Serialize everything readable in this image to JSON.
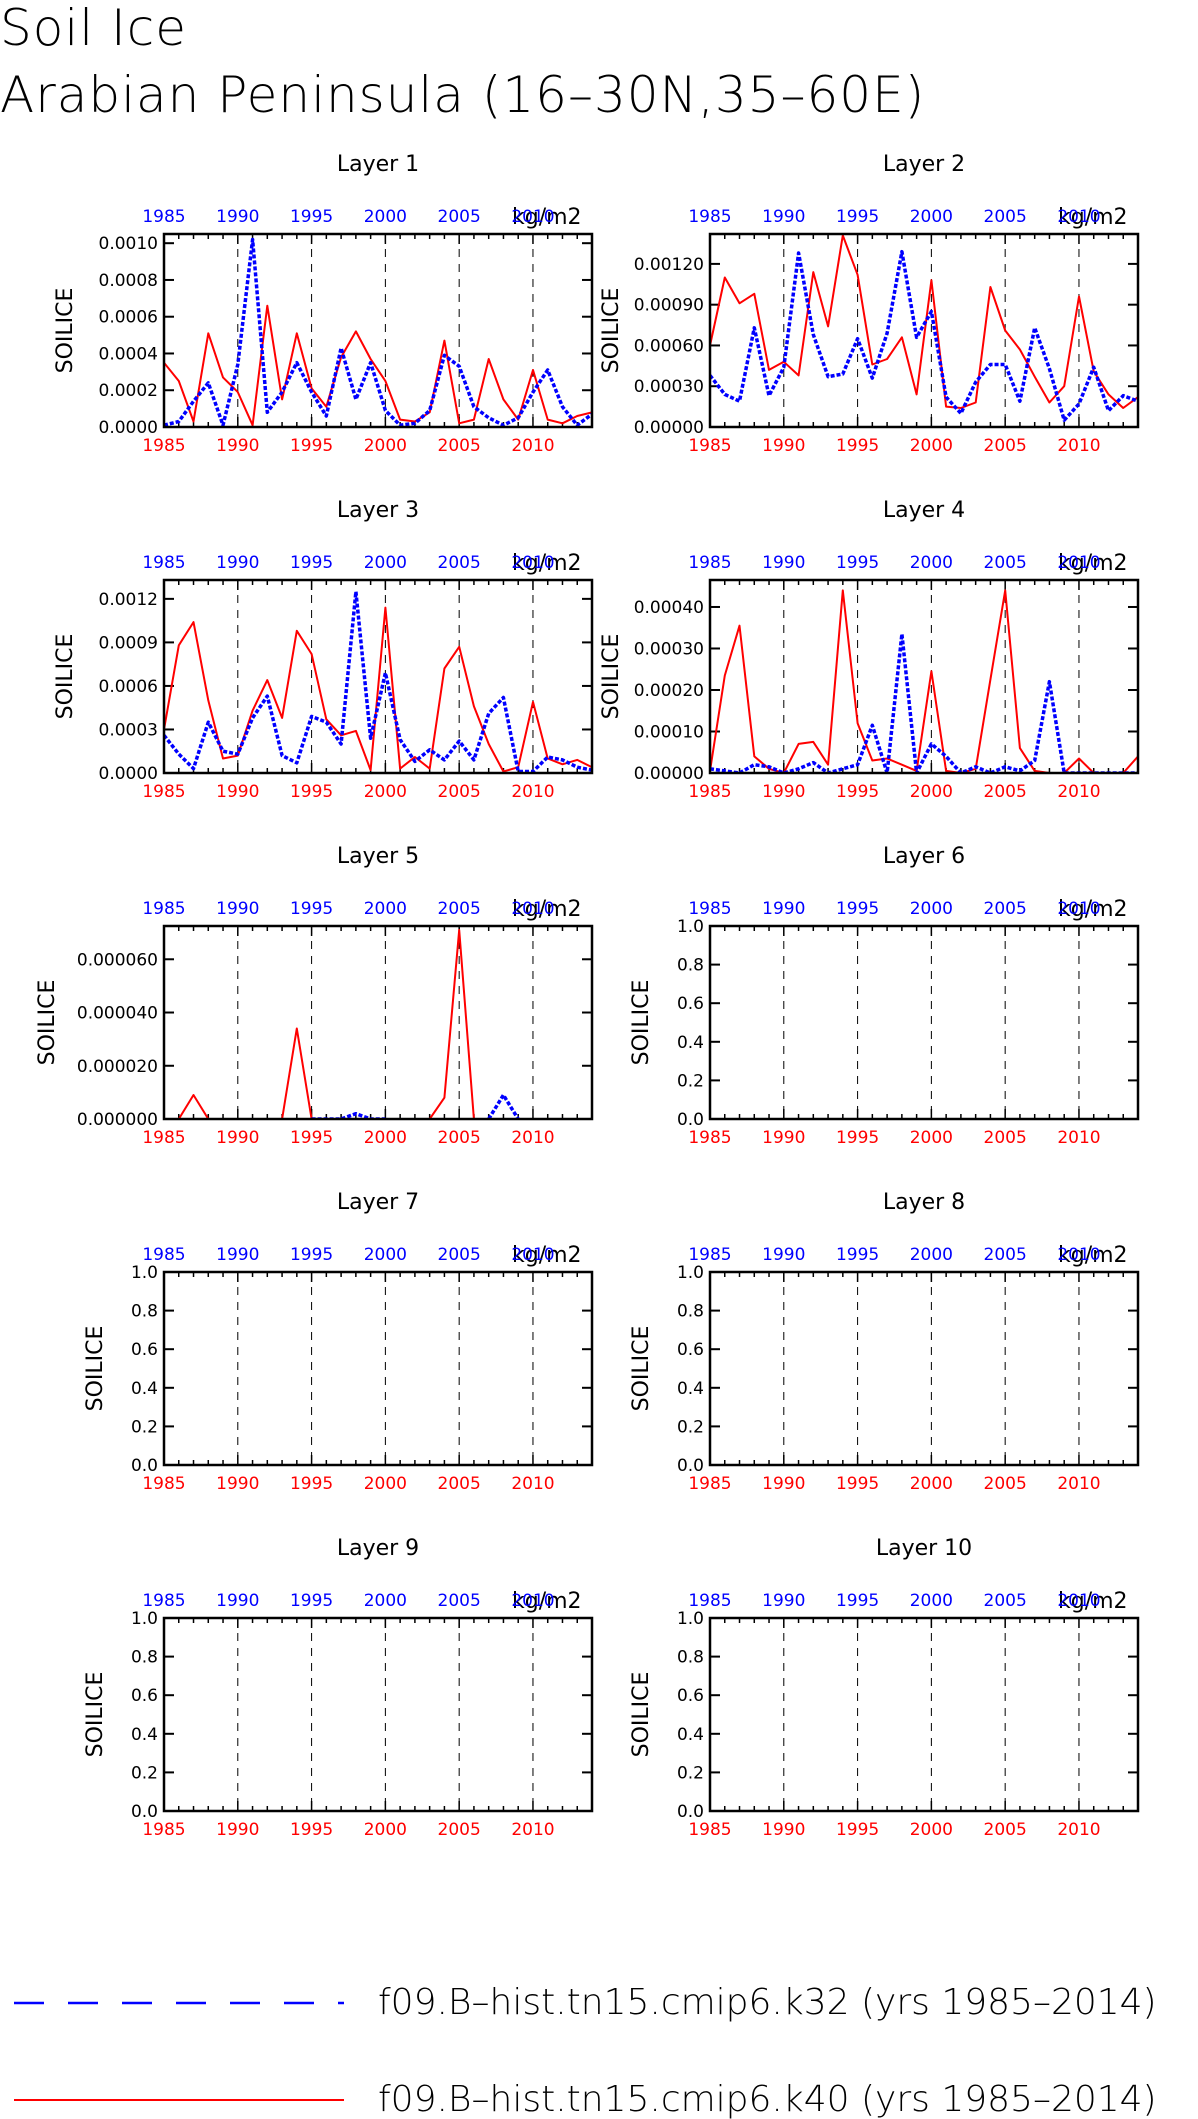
{
  "title": [
    "Soil Ice",
    "Arabian Peninsula (16–30N,35–60E)"
  ],
  "colors": {
    "k32": "#0000ff",
    "k40": "#ff0000",
    "axis": "#000000"
  },
  "legend": [
    {
      "series": "k32",
      "label": "f09.B–hist.tn15.cmip6.k32 (yrs 1985–2014)",
      "style": "dashed",
      "color": "#0000ff"
    },
    {
      "series": "k40",
      "label": "f09.B–hist.tn15.cmip6.k40 (yrs 1985–2014)",
      "style": "solid",
      "color": "#ff0000"
    }
  ],
  "chart_data": [
    {
      "type": "line",
      "title": "Layer 1",
      "ylabel": "SOILICE",
      "units": "kg/m2",
      "xlim": [
        1985,
        2014
      ],
      "ylim": [
        0,
        0.00105
      ],
      "yticks": [
        "0.0000",
        "0.0002",
        "0.0004",
        "0.0006",
        "0.0008",
        "0.0010"
      ],
      "ytick_values": [
        0,
        0.0002,
        0.0004,
        0.0006,
        0.0008,
        0.001
      ],
      "xticks_bottom": [
        "1985",
        "1990",
        "1995",
        "2000",
        "2005",
        "2010"
      ],
      "xticks_top": [
        "1985",
        "1990",
        "1995",
        "2000",
        "2005",
        "2010"
      ],
      "x": [
        1985,
        1986,
        1987,
        1988,
        1989,
        1990,
        1991,
        1992,
        1993,
        1994,
        1995,
        1996,
        1997,
        1998,
        1999,
        2000,
        2001,
        2002,
        2003,
        2004,
        2005,
        2006,
        2007,
        2008,
        2009,
        2010,
        2011,
        2012,
        2013,
        2014
      ],
      "series": [
        {
          "name": "k40",
          "values": [
            0.00035,
            0.00025,
            3e-05,
            0.00051,
            0.00027,
            0.00019,
            1e-05,
            0.00066,
            0.00015,
            0.00051,
            0.00021,
            0.00011,
            0.00038,
            0.00052,
            0.00037,
            0.00025,
            4e-05,
            3e-05,
            8e-05,
            0.00047,
            2e-05,
            4e-05,
            0.00037,
            0.00015,
            4e-05,
            0.00031,
            4e-05,
            2e-05,
            6e-05,
            8e-05
          ]
        },
        {
          "name": "k32",
          "values": [
            1e-05,
            3e-05,
            0.00014,
            0.00024,
            1e-05,
            0.00034,
            0.00102,
            8e-05,
            0.00019,
            0.00035,
            0.00019,
            6e-05,
            0.00043,
            0.00015,
            0.00035,
            9e-05,
            1e-05,
            2e-05,
            9e-05,
            0.00039,
            0.00033,
            0.00011,
            5e-05,
            1e-05,
            5e-05,
            0.00019,
            0.00031,
            0.00011,
            1e-05,
            7e-05
          ]
        }
      ]
    },
    {
      "type": "line",
      "title": "Layer 2",
      "ylabel": "SOILICE",
      "units": "kg/m2",
      "xlim": [
        1985,
        2014
      ],
      "ylim": [
        0,
        0.00142
      ],
      "yticks": [
        "0.00000",
        "0.00030",
        "0.00060",
        "0.00090",
        "0.00120"
      ],
      "ytick_values": [
        0,
        0.0003,
        0.0006,
        0.0009,
        0.0012
      ],
      "xticks_bottom": [
        "1985",
        "1990",
        "1995",
        "2000",
        "2005",
        "2010"
      ],
      "xticks_top": [
        "1985",
        "1990",
        "1995",
        "2000",
        "2005",
        "2010"
      ],
      "x": [
        1985,
        1986,
        1987,
        1988,
        1989,
        1990,
        1991,
        1992,
        1993,
        1994,
        1995,
        1996,
        1997,
        1998,
        1999,
        2000,
        2001,
        2002,
        2003,
        2004,
        2005,
        2006,
        2007,
        2008,
        2009,
        2010,
        2011,
        2012,
        2013,
        2014
      ],
      "series": [
        {
          "name": "k40",
          "values": [
            0.0006,
            0.0011,
            0.00091,
            0.00098,
            0.00042,
            0.00048,
            0.00038,
            0.00114,
            0.00074,
            0.00141,
            0.00112,
            0.00046,
            0.0005,
            0.00066,
            0.00024,
            0.00108,
            0.00015,
            0.00014,
            0.00018,
            0.00103,
            0.00071,
            0.00057,
            0.00037,
            0.00018,
            0.0003,
            0.00096,
            0.00041,
            0.00024,
            0.00014,
            0.00022
          ]
        },
        {
          "name": "k32",
          "values": [
            0.00038,
            0.00024,
            0.00019,
            0.00073,
            0.00023,
            0.00044,
            0.00128,
            0.00068,
            0.00037,
            0.00039,
            0.00065,
            0.00036,
            0.00069,
            0.00129,
            0.00066,
            0.00085,
            0.00022,
            0.0001,
            0.00033,
            0.00046,
            0.00046,
            0.00019,
            0.00073,
            0.00043,
            5e-05,
            0.00017,
            0.00044,
            0.00012,
            0.00023,
            0.00019
          ]
        }
      ]
    },
    {
      "type": "line",
      "title": "Layer 3",
      "ylabel": "SOILICE",
      "units": "kg/m2",
      "xlim": [
        1985,
        2014
      ],
      "ylim": [
        0,
        0.00133
      ],
      "yticks": [
        "0.0000",
        "0.0003",
        "0.0006",
        "0.0009",
        "0.0012"
      ],
      "ytick_values": [
        0,
        0.0003,
        0.0006,
        0.0009,
        0.0012
      ],
      "xticks_bottom": [
        "1985",
        "1990",
        "1995",
        "2000",
        "2005",
        "2010"
      ],
      "xticks_top": [
        "1985",
        "1990",
        "1995",
        "2000",
        "2005",
        "2010"
      ],
      "x": [
        1985,
        1986,
        1987,
        1988,
        1989,
        1990,
        1991,
        1992,
        1993,
        1994,
        1995,
        1996,
        1997,
        1998,
        1999,
        2000,
        2001,
        2002,
        2003,
        2004,
        2005,
        2006,
        2007,
        2008,
        2009,
        2010,
        2011,
        2012,
        2013,
        2014
      ],
      "series": [
        {
          "name": "k40",
          "values": [
            0.0003,
            0.00088,
            0.00104,
            0.0005,
            0.0001,
            0.00012,
            0.00043,
            0.00064,
            0.00038,
            0.00098,
            0.00082,
            0.00037,
            0.00026,
            0.00029,
            2e-05,
            0.00114,
            3e-05,
            0.00011,
            3e-05,
            0.00072,
            0.00087,
            0.00046,
            0.0002,
            1e-05,
            4e-05,
            0.00049,
            0.0001,
            6e-05,
            9e-05,
            4e-05
          ]
        },
        {
          "name": "k32",
          "values": [
            0.00026,
            0.00013,
            3e-05,
            0.00035,
            0.00015,
            0.00013,
            0.00038,
            0.00053,
            0.00012,
            7e-05,
            0.00039,
            0.00035,
            0.0002,
            0.00125,
            0.00024,
            0.00069,
            0.00023,
            8e-05,
            0.00016,
            9e-05,
            0.00022,
            9e-05,
            0.00041,
            0.00052,
            1e-05,
            1e-05,
            0.00011,
            9e-05,
            4e-05,
            2e-05
          ]
        }
      ]
    },
    {
      "type": "line",
      "title": "Layer 4",
      "ylabel": "SOILICE",
      "units": "kg/m2",
      "xlim": [
        1985,
        2014
      ],
      "ylim": [
        0,
        0.000465
      ],
      "yticks": [
        "0.00000",
        "0.00010",
        "0.00020",
        "0.00030",
        "0.00040"
      ],
      "ytick_values": [
        0,
        0.0001,
        0.0002,
        0.0003,
        0.0004
      ],
      "xticks_bottom": [
        "1985",
        "1990",
        "1995",
        "2000",
        "2005",
        "2010"
      ],
      "xticks_top": [
        "1985",
        "1990",
        "1995",
        "2000",
        "2005",
        "2010"
      ],
      "x": [
        1985,
        1986,
        1987,
        1988,
        1989,
        1990,
        1991,
        1992,
        1993,
        1994,
        1995,
        1996,
        1997,
        1998,
        1999,
        2000,
        2001,
        2002,
        2003,
        2004,
        2005,
        2006,
        2007,
        2008,
        2009,
        2010,
        2011,
        2012,
        2013,
        2014
      ],
      "series": [
        {
          "name": "k40",
          "values": [
            5e-06,
            0.000235,
            0.000355,
            4e-05,
            1e-05,
            0.0,
            7e-05,
            7.5e-05,
            2e-05,
            0.00044,
            0.00012,
            3e-05,
            3.5e-05,
            2e-05,
            5e-06,
            0.000245,
            5e-06,
            0.0,
            1e-05,
            0.000225,
            0.00044,
            6e-05,
            5e-06,
            0.0,
            0.0,
            3.5e-05,
            0.0,
            0.0,
            0.0,
            4e-05
          ]
        },
        {
          "name": "k32",
          "values": [
            1e-05,
            5e-06,
            0.0,
            2e-05,
            1.5e-05,
            0.0,
            1e-05,
            2.5e-05,
            0.0,
            1e-05,
            2e-05,
            0.000115,
            0.0,
            0.000335,
            0.0,
            7e-05,
            4e-05,
            0.0,
            1.5e-05,
            0.0,
            1.5e-05,
            5e-06,
            3e-05,
            0.00022,
            0.0,
            0.0,
            0.0,
            0.0,
            0.0,
            0.0
          ]
        }
      ]
    },
    {
      "type": "line",
      "title": "Layer 5",
      "ylabel": "SOILICE",
      "units": "kg/m2",
      "xlim": [
        1985,
        2014
      ],
      "ylim": [
        0,
        7.25e-05
      ],
      "yticks": [
        "0.000000",
        "0.000020",
        "0.000040",
        "0.000060"
      ],
      "ytick_values": [
        0,
        2e-05,
        4e-05,
        6e-05
      ],
      "xticks_bottom": [
        "1985",
        "1990",
        "1995",
        "2000",
        "2005",
        "2010"
      ],
      "xticks_top": [
        "1985",
        "1990",
        "1995",
        "2000",
        "2005",
        "2010"
      ],
      "x": [
        1985,
        1986,
        1987,
        1988,
        1989,
        1990,
        1991,
        1992,
        1993,
        1994,
        1995,
        1996,
        1997,
        1998,
        1999,
        2000,
        2001,
        2002,
        2003,
        2004,
        2005,
        2006,
        2007,
        2008,
        2009,
        2010,
        2011,
        2012,
        2013,
        2014
      ],
      "series": [
        {
          "name": "k40",
          "values": [
            null,
            0.0,
            9e-06,
            0.0,
            0.0,
            0.0,
            0.0,
            0.0,
            0.0,
            3.4e-05,
            0.0,
            null,
            null,
            null,
            null,
            null,
            null,
            null,
            0.0,
            8e-06,
            7.1e-05,
            0.0,
            null,
            null,
            null,
            null,
            null,
            null,
            null,
            null
          ]
        },
        {
          "name": "k32",
          "values": [
            null,
            null,
            null,
            null,
            null,
            null,
            null,
            null,
            null,
            null,
            0.0,
            0.0,
            0.0,
            2e-06,
            0.0,
            0.0,
            null,
            null,
            null,
            null,
            null,
            null,
            0.0,
            9e-06,
            0.0,
            null,
            null,
            null,
            null,
            null
          ]
        }
      ]
    },
    {
      "type": "line",
      "title": "Layer 6",
      "ylabel": "SOILICE",
      "units": "kg/m2",
      "xlim": [
        1985,
        2014
      ],
      "ylim": [
        0,
        1.0
      ],
      "yticks": [
        "0.0",
        "0.2",
        "0.4",
        "0.6",
        "0.8",
        "1.0"
      ],
      "ytick_values": [
        0,
        0.2,
        0.4,
        0.6,
        0.8,
        1.0
      ],
      "xticks_bottom": [
        "1985",
        "1990",
        "1995",
        "2000",
        "2005",
        "2010"
      ],
      "xticks_top": [
        "1985",
        "1990",
        "1995",
        "2000",
        "2005",
        "2010"
      ],
      "x": [],
      "series": []
    },
    {
      "type": "line",
      "title": "Layer 7",
      "ylabel": "SOILICE",
      "units": "kg/m2",
      "xlim": [
        1985,
        2014
      ],
      "ylim": [
        0,
        1.0
      ],
      "yticks": [
        "0.0",
        "0.2",
        "0.4",
        "0.6",
        "0.8",
        "1.0"
      ],
      "ytick_values": [
        0,
        0.2,
        0.4,
        0.6,
        0.8,
        1.0
      ],
      "xticks_bottom": [
        "1985",
        "1990",
        "1995",
        "2000",
        "2005",
        "2010"
      ],
      "xticks_top": [
        "1985",
        "1990",
        "1995",
        "2000",
        "2005",
        "2010"
      ],
      "x": [],
      "series": []
    },
    {
      "type": "line",
      "title": "Layer 8",
      "ylabel": "SOILICE",
      "units": "kg/m2",
      "xlim": [
        1985,
        2014
      ],
      "ylim": [
        0,
        1.0
      ],
      "yticks": [
        "0.0",
        "0.2",
        "0.4",
        "0.6",
        "0.8",
        "1.0"
      ],
      "ytick_values": [
        0,
        0.2,
        0.4,
        0.6,
        0.8,
        1.0
      ],
      "xticks_bottom": [
        "1985",
        "1990",
        "1995",
        "2000",
        "2005",
        "2010"
      ],
      "xticks_top": [
        "1985",
        "1990",
        "1995",
        "2000",
        "2005",
        "2010"
      ],
      "x": [],
      "series": []
    },
    {
      "type": "line",
      "title": "Layer 9",
      "ylabel": "SOILICE",
      "units": "kg/m2",
      "xlim": [
        1985,
        2014
      ],
      "ylim": [
        0,
        1.0
      ],
      "yticks": [
        "0.0",
        "0.2",
        "0.4",
        "0.6",
        "0.8",
        "1.0"
      ],
      "ytick_values": [
        0,
        0.2,
        0.4,
        0.6,
        0.8,
        1.0
      ],
      "xticks_bottom": [
        "1985",
        "1990",
        "1995",
        "2000",
        "2005",
        "2010"
      ],
      "xticks_top": [
        "1985",
        "1990",
        "1995",
        "2000",
        "2005",
        "2010"
      ],
      "x": [],
      "series": []
    },
    {
      "type": "line",
      "title": "Layer 10",
      "ylabel": "SOILICE",
      "units": "kg/m2",
      "xlim": [
        1985,
        2014
      ],
      "ylim": [
        0,
        1.0
      ],
      "yticks": [
        "0.0",
        "0.2",
        "0.4",
        "0.6",
        "0.8",
        "1.0"
      ],
      "ytick_values": [
        0,
        0.2,
        0.4,
        0.6,
        0.8,
        1.0
      ],
      "xticks_bottom": [
        "1985",
        "1990",
        "1995",
        "2000",
        "2005",
        "2010"
      ],
      "xticks_top": [
        "1985",
        "1990",
        "1995",
        "2000",
        "2005",
        "2010"
      ],
      "x": [],
      "series": []
    }
  ]
}
